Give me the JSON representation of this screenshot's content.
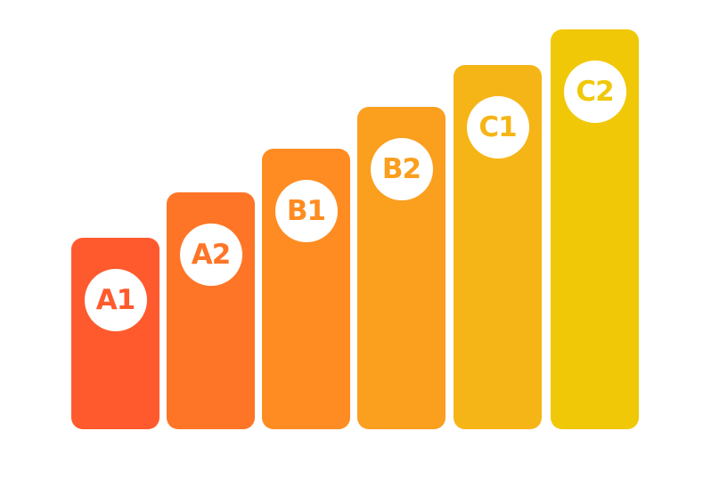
{
  "levels": [
    {
      "label": "A1",
      "rank": 1,
      "color": "#FF5A2E"
    },
    {
      "label": "A2",
      "rank": 2,
      "color": "#FF7527"
    },
    {
      "label": "B1",
      "rank": 3,
      "color": "#FF8C22"
    },
    {
      "label": "B2",
      "rank": 4,
      "color": "#FA9F1E"
    },
    {
      "label": "C1",
      "rank": 5,
      "color": "#F6B517"
    },
    {
      "label": "C2",
      "rank": 6,
      "color": "#F0C808"
    }
  ]
}
